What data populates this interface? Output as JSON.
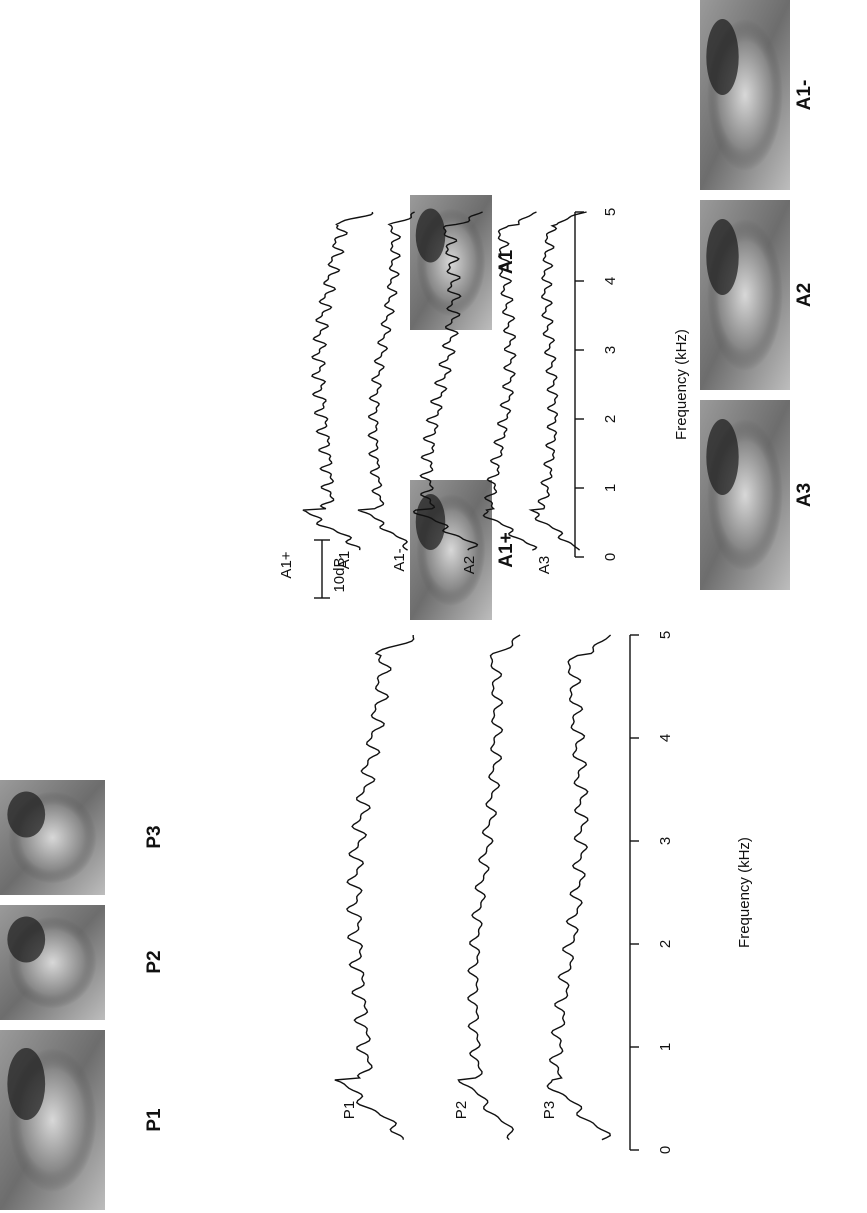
{
  "photo_labels": [
    "P1",
    "P2",
    "P3",
    "A1+",
    "A1",
    "A1-",
    "A2",
    "A3"
  ],
  "left_panel": {
    "curve_labels": [
      "P1",
      "P2",
      "P3"
    ],
    "xticks": [
      0,
      1,
      2,
      3,
      4,
      5
    ],
    "xlabel": "Frequency (kHz)"
  },
  "right_panel": {
    "curve_labels": [
      "A1+",
      "A1",
      "A1-",
      "A2",
      "A3"
    ],
    "scale_label": "10dB",
    "xticks": [
      0,
      1,
      2,
      3,
      4,
      5
    ],
    "xlabel": "Frequency (kHz)"
  }
}
